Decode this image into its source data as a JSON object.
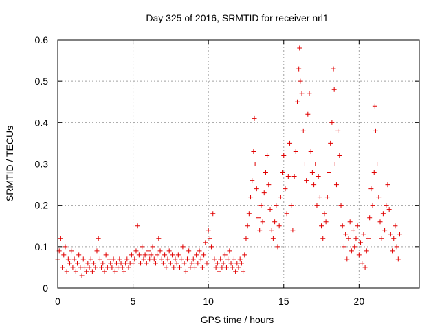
{
  "chart_data": {
    "type": "scatter",
    "title": "Day 325 of 2016, SRMTID for receiver nrl1",
    "xlabel": "GPS time / hours",
    "ylabel": "SRMTID / TECUs",
    "xlim": [
      0,
      24
    ],
    "ylim": [
      0,
      0.6
    ],
    "x_ticks": [
      0,
      5,
      10,
      15,
      20
    ],
    "x_tick_labels": [
      "0",
      "5",
      "10",
      "15",
      "20"
    ],
    "y_ticks": [
      0,
      0.1,
      0.2,
      0.3,
      0.4,
      0.5,
      0.6
    ],
    "y_tick_labels": [
      "0",
      "0.1",
      "0.2",
      "0.3",
      "0.4",
      "0.5",
      "0.6"
    ],
    "grid": true,
    "marker": "plus",
    "color": "#e00000",
    "series": [
      {
        "name": "nrl1",
        "points": [
          [
            0.0,
            0.07
          ],
          [
            0.1,
            0.09
          ],
          [
            0.2,
            0.12
          ],
          [
            0.3,
            0.05
          ],
          [
            0.4,
            0.08
          ],
          [
            0.5,
            0.1
          ],
          [
            0.6,
            0.04
          ],
          [
            0.7,
            0.07
          ],
          [
            0.8,
            0.06
          ],
          [
            0.9,
            0.09
          ],
          [
            1.0,
            0.05
          ],
          [
            1.1,
            0.07
          ],
          [
            1.2,
            0.04
          ],
          [
            1.3,
            0.06
          ],
          [
            1.4,
            0.08
          ],
          [
            1.5,
            0.05
          ],
          [
            1.6,
            0.03
          ],
          [
            1.7,
            0.07
          ],
          [
            1.8,
            0.05
          ],
          [
            1.9,
            0.04
          ],
          [
            2.0,
            0.06
          ],
          [
            2.1,
            0.05
          ],
          [
            2.2,
            0.07
          ],
          [
            2.3,
            0.04
          ],
          [
            2.4,
            0.06
          ],
          [
            2.5,
            0.05
          ],
          [
            2.6,
            0.09
          ],
          [
            2.7,
            0.12
          ],
          [
            2.8,
            0.07
          ],
          [
            2.9,
            0.05
          ],
          [
            3.0,
            0.06
          ],
          [
            3.1,
            0.04
          ],
          [
            3.2,
            0.08
          ],
          [
            3.3,
            0.05
          ],
          [
            3.4,
            0.07
          ],
          [
            3.5,
            0.06
          ],
          [
            3.6,
            0.05
          ],
          [
            3.7,
            0.07
          ],
          [
            3.8,
            0.04
          ],
          [
            3.9,
            0.06
          ],
          [
            4.0,
            0.05
          ],
          [
            4.1,
            0.07
          ],
          [
            4.2,
            0.06
          ],
          [
            4.3,
            0.05
          ],
          [
            4.4,
            0.04
          ],
          [
            4.5,
            0.06
          ],
          [
            4.6,
            0.07
          ],
          [
            4.7,
            0.05
          ],
          [
            4.8,
            0.06
          ],
          [
            4.9,
            0.08
          ],
          [
            5.0,
            0.06
          ],
          [
            5.1,
            0.07
          ],
          [
            5.2,
            0.09
          ],
          [
            5.3,
            0.15
          ],
          [
            5.4,
            0.08
          ],
          [
            5.5,
            0.06
          ],
          [
            5.6,
            0.1
          ],
          [
            5.7,
            0.07
          ],
          [
            5.8,
            0.08
          ],
          [
            5.9,
            0.06
          ],
          [
            6.0,
            0.09
          ],
          [
            6.1,
            0.07
          ],
          [
            6.2,
            0.08
          ],
          [
            6.3,
            0.1
          ],
          [
            6.4,
            0.07
          ],
          [
            6.5,
            0.06
          ],
          [
            6.6,
            0.08
          ],
          [
            6.7,
            0.12
          ],
          [
            6.8,
            0.09
          ],
          [
            6.9,
            0.07
          ],
          [
            7.0,
            0.06
          ],
          [
            7.1,
            0.08
          ],
          [
            7.2,
            0.05
          ],
          [
            7.3,
            0.07
          ],
          [
            7.4,
            0.09
          ],
          [
            7.5,
            0.06
          ],
          [
            7.6,
            0.08
          ],
          [
            7.7,
            0.05
          ],
          [
            7.8,
            0.07
          ],
          [
            7.9,
            0.06
          ],
          [
            8.0,
            0.08
          ],
          [
            8.1,
            0.05
          ],
          [
            8.2,
            0.07
          ],
          [
            8.3,
            0.1
          ],
          [
            8.4,
            0.06
          ],
          [
            8.5,
            0.04
          ],
          [
            8.6,
            0.07
          ],
          [
            8.7,
            0.09
          ],
          [
            8.8,
            0.05
          ],
          [
            8.9,
            0.06
          ],
          [
            9.0,
            0.07
          ],
          [
            9.1,
            0.05
          ],
          [
            9.2,
            0.08
          ],
          [
            9.3,
            0.06
          ],
          [
            9.4,
            0.09
          ],
          [
            9.5,
            0.07
          ],
          [
            9.6,
            0.05
          ],
          [
            9.7,
            0.08
          ],
          [
            9.8,
            0.11
          ],
          [
            9.9,
            0.06
          ],
          [
            10.0,
            0.14
          ],
          [
            10.1,
            0.12
          ],
          [
            10.2,
            0.1
          ],
          [
            10.3,
            0.18
          ],
          [
            10.4,
            0.07
          ],
          [
            10.5,
            0.05
          ],
          [
            10.6,
            0.06
          ],
          [
            10.7,
            0.04
          ],
          [
            10.8,
            0.07
          ],
          [
            10.9,
            0.05
          ],
          [
            11.0,
            0.06
          ],
          [
            11.1,
            0.08
          ],
          [
            11.2,
            0.05
          ],
          [
            11.3,
            0.07
          ],
          [
            11.4,
            0.09
          ],
          [
            11.5,
            0.06
          ],
          [
            11.6,
            0.05
          ],
          [
            11.7,
            0.07
          ],
          [
            11.8,
            0.04
          ],
          [
            11.9,
            0.06
          ],
          [
            12.0,
            0.05
          ],
          [
            12.1,
            0.07
          ],
          [
            12.2,
            0.06
          ],
          [
            12.3,
            0.04
          ],
          [
            12.4,
            0.08
          ],
          [
            12.5,
            0.12
          ],
          [
            12.6,
            0.15
          ],
          [
            12.7,
            0.18
          ],
          [
            12.8,
            0.22
          ],
          [
            12.9,
            0.26
          ],
          [
            13.0,
            0.33
          ],
          [
            13.05,
            0.41
          ],
          [
            13.1,
            0.3
          ],
          [
            13.2,
            0.24
          ],
          [
            13.3,
            0.17
          ],
          [
            13.4,
            0.14
          ],
          [
            13.5,
            0.2
          ],
          [
            13.6,
            0.16
          ],
          [
            13.7,
            0.23
          ],
          [
            13.8,
            0.28
          ],
          [
            13.9,
            0.32
          ],
          [
            14.0,
            0.25
          ],
          [
            14.1,
            0.19
          ],
          [
            14.2,
            0.14
          ],
          [
            14.3,
            0.12
          ],
          [
            14.4,
            0.16
          ],
          [
            14.5,
            0.2
          ],
          [
            14.6,
            0.1
          ],
          [
            14.7,
            0.15
          ],
          [
            14.8,
            0.22
          ],
          [
            14.9,
            0.28
          ],
          [
            15.0,
            0.32
          ],
          [
            15.1,
            0.24
          ],
          [
            15.2,
            0.18
          ],
          [
            15.3,
            0.27
          ],
          [
            15.4,
            0.35
          ],
          [
            15.5,
            0.2
          ],
          [
            15.6,
            0.14
          ],
          [
            15.7,
            0.27
          ],
          [
            15.8,
            0.33
          ],
          [
            15.9,
            0.45
          ],
          [
            16.0,
            0.53
          ],
          [
            16.05,
            0.58
          ],
          [
            16.1,
            0.5
          ],
          [
            16.2,
            0.47
          ],
          [
            16.3,
            0.38
          ],
          [
            16.4,
            0.3
          ],
          [
            16.5,
            0.26
          ],
          [
            16.6,
            0.42
          ],
          [
            16.7,
            0.47
          ],
          [
            16.8,
            0.33
          ],
          [
            16.9,
            0.28
          ],
          [
            17.0,
            0.25
          ],
          [
            17.1,
            0.3
          ],
          [
            17.2,
            0.2
          ],
          [
            17.3,
            0.27
          ],
          [
            17.4,
            0.22
          ],
          [
            17.5,
            0.15
          ],
          [
            17.6,
            0.12
          ],
          [
            17.7,
            0.18
          ],
          [
            17.8,
            0.16
          ],
          [
            17.9,
            0.22
          ],
          [
            18.0,
            0.28
          ],
          [
            18.1,
            0.35
          ],
          [
            18.2,
            0.4
          ],
          [
            18.3,
            0.53
          ],
          [
            18.35,
            0.48
          ],
          [
            18.4,
            0.3
          ],
          [
            18.5,
            0.25
          ],
          [
            18.6,
            0.38
          ],
          [
            18.7,
            0.32
          ],
          [
            18.8,
            0.2
          ],
          [
            18.9,
            0.15
          ],
          [
            19.0,
            0.1
          ],
          [
            19.1,
            0.13
          ],
          [
            19.2,
            0.07
          ],
          [
            19.3,
            0.12
          ],
          [
            19.4,
            0.16
          ],
          [
            19.5,
            0.09
          ],
          [
            19.6,
            0.14
          ],
          [
            19.7,
            0.1
          ],
          [
            19.8,
            0.12
          ],
          [
            19.9,
            0.15
          ],
          [
            20.0,
            0.08
          ],
          [
            20.1,
            0.11
          ],
          [
            20.2,
            0.06
          ],
          [
            20.3,
            0.13
          ],
          [
            20.4,
            0.05
          ],
          [
            20.5,
            0.09
          ],
          [
            20.6,
            0.12
          ],
          [
            20.7,
            0.17
          ],
          [
            20.8,
            0.24
          ],
          [
            20.9,
            0.2
          ],
          [
            21.0,
            0.28
          ],
          [
            21.05,
            0.44
          ],
          [
            21.1,
            0.38
          ],
          [
            21.2,
            0.3
          ],
          [
            21.3,
            0.22
          ],
          [
            21.4,
            0.16
          ],
          [
            21.5,
            0.12
          ],
          [
            21.6,
            0.18
          ],
          [
            21.7,
            0.14
          ],
          [
            21.8,
            0.2
          ],
          [
            21.9,
            0.25
          ],
          [
            22.0,
            0.19
          ],
          [
            22.1,
            0.13
          ],
          [
            22.2,
            0.09
          ],
          [
            22.3,
            0.12
          ],
          [
            22.4,
            0.15
          ],
          [
            22.5,
            0.1
          ],
          [
            22.6,
            0.07
          ],
          [
            22.7,
            0.13
          ]
        ]
      }
    ]
  }
}
